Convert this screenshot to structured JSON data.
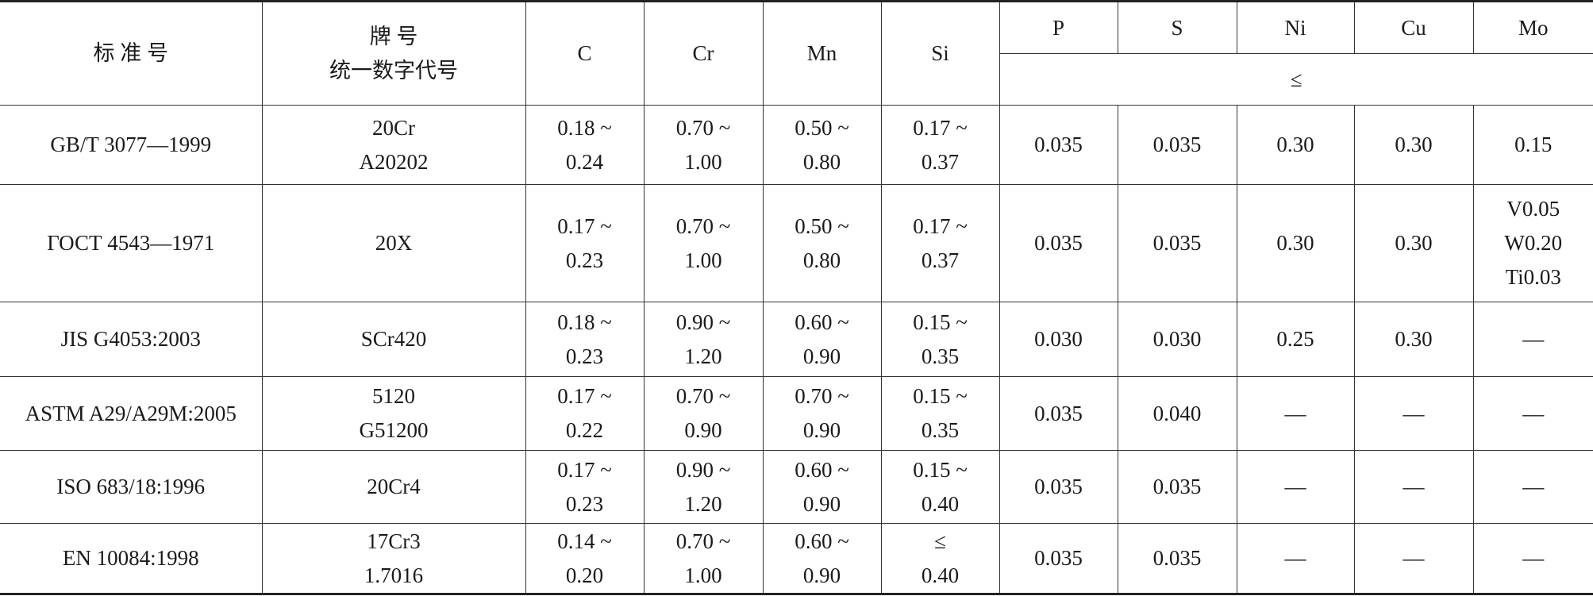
{
  "header": {
    "standard": "标 准 号",
    "grade": [
      "牌 号",
      "统一数字代号"
    ],
    "elements": [
      "C",
      "Cr",
      "Mn",
      "Si",
      "P",
      "S",
      "Ni",
      "Cu",
      "Mo"
    ],
    "max_note": "≤"
  },
  "rows": [
    [
      [
        "GB/T 3077—1999"
      ],
      [
        "20Cr",
        "A20202"
      ],
      [
        "0.18 ~",
        "0.24"
      ],
      [
        "0.70 ~",
        "1.00"
      ],
      [
        "0.50 ~",
        "0.80"
      ],
      [
        "0.17 ~",
        "0.37"
      ],
      [
        "0.035"
      ],
      [
        "0.035"
      ],
      [
        "0.30"
      ],
      [
        "0.30"
      ],
      [
        "0.15"
      ]
    ],
    [
      [
        "ГОСТ 4543—1971"
      ],
      [
        "20X"
      ],
      [
        "0.17 ~",
        "0.23"
      ],
      [
        "0.70 ~",
        "1.00"
      ],
      [
        "0.50 ~",
        "0.80"
      ],
      [
        "0.17 ~",
        "0.37"
      ],
      [
        "0.035"
      ],
      [
        "0.035"
      ],
      [
        "0.30"
      ],
      [
        "0.30"
      ],
      [
        "V0.05",
        "W0.20",
        "Ti0.03"
      ]
    ],
    [
      [
        "JIS G4053:2003"
      ],
      [
        "SCr420"
      ],
      [
        "0.18 ~",
        "0.23"
      ],
      [
        "0.90 ~",
        "1.20"
      ],
      [
        "0.60 ~",
        "0.90"
      ],
      [
        "0.15 ~",
        "0.35"
      ],
      [
        "0.030"
      ],
      [
        "0.030"
      ],
      [
        "0.25"
      ],
      [
        "0.30"
      ],
      [
        "—"
      ]
    ],
    [
      [
        "ASTM A29/A29M:2005"
      ],
      [
        "5120",
        "G51200"
      ],
      [
        "0.17 ~",
        "0.22"
      ],
      [
        "0.70 ~",
        "0.90"
      ],
      [
        "0.70 ~",
        "0.90"
      ],
      [
        "0.15 ~",
        "0.35"
      ],
      [
        "0.035"
      ],
      [
        "0.040"
      ],
      [
        "—"
      ],
      [
        "—"
      ],
      [
        "—"
      ]
    ],
    [
      [
        "ISO 683/18:1996"
      ],
      [
        "20Cr4"
      ],
      [
        "0.17 ~",
        "0.23"
      ],
      [
        "0.90 ~",
        "1.20"
      ],
      [
        "0.60 ~",
        "0.90"
      ],
      [
        "0.15 ~",
        "0.40"
      ],
      [
        "0.035"
      ],
      [
        "0.035"
      ],
      [
        "—"
      ],
      [
        "—"
      ],
      [
        "—"
      ]
    ],
    [
      [
        "EN 10084:1998"
      ],
      [
        "17Cr3",
        "1.7016"
      ],
      [
        "0.14 ~",
        "0.20"
      ],
      [
        "0.70 ~",
        "1.00"
      ],
      [
        "0.60 ~",
        "0.90"
      ],
      [
        "≤",
        "0.40"
      ],
      [
        "0.035"
      ],
      [
        "0.035"
      ],
      [
        "—"
      ],
      [
        "—"
      ],
      [
        "—"
      ]
    ]
  ]
}
